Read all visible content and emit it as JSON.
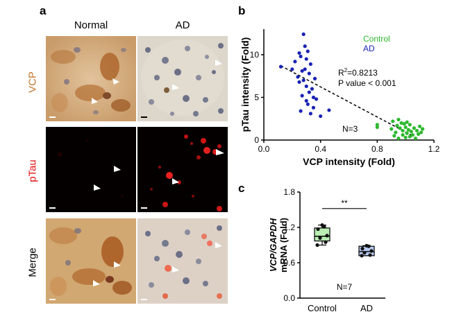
{
  "panel_a": {
    "letter": "a",
    "columns": [
      "Normal",
      "AD"
    ],
    "rows": [
      {
        "label": "VCP",
        "color": "#c8742a"
      },
      {
        "label": "pTau",
        "color": "#e01010"
      },
      {
        "label": "Merge",
        "color": "#000000"
      }
    ]
  },
  "panel_b": {
    "letter": "b",
    "legend": [
      {
        "name": "Control",
        "color": "#2db82d"
      },
      {
        "name": "AD",
        "color": "#1a22b4"
      }
    ],
    "stats_r2": "=0.8213",
    "stats_r2_prefix": "R",
    "stats_r2_sup": "2",
    "stats_p": "P value < 0.001",
    "n_label": "N=3",
    "xlabel": "VCP intensity (Fold)",
    "ylabel": "pTau intensity (Fold)",
    "xticks": [
      "0.0",
      "0.4",
      "0.8",
      "1.2"
    ],
    "yticks": [
      "0",
      "5",
      "10"
    ]
  },
  "panel_c": {
    "letter": "c",
    "ylabel_italic": "VCP/GAPDH",
    "ylabel": "mRNA (Fold)",
    "yticks": [
      "0.0",
      "0.6",
      "1.2",
      "1.8"
    ],
    "categories": [
      "Control",
      "AD"
    ],
    "significance": "**",
    "n_label": "N=7"
  },
  "chart_data": [
    {
      "type": "scatter",
      "title": "",
      "xlabel": "VCP intensity (Fold)",
      "ylabel": "pTau intensity (Fold)",
      "xlim": [
        0.0,
        1.2
      ],
      "ylim": [
        0,
        13
      ],
      "xticks": [
        0.0,
        0.4,
        0.8,
        1.2
      ],
      "yticks": [
        0,
        5,
        10
      ],
      "trendline": {
        "style": "dashed",
        "x": [
          0.12,
          1.05
        ],
        "y": [
          8.7,
          0.5
        ]
      },
      "series": [
        {
          "name": "Control",
          "color": "#2db82d",
          "points": [
            [
              0.8,
              1.5
            ],
            [
              0.8,
              1.8
            ],
            [
              0.9,
              1.3
            ],
            [
              0.91,
              2.2
            ],
            [
              0.93,
              0.9
            ],
            [
              0.94,
              1.7
            ],
            [
              0.95,
              0.2
            ],
            [
              0.96,
              1.4
            ],
            [
              0.97,
              2.0
            ],
            [
              0.98,
              0.6
            ],
            [
              0.98,
              1.1
            ],
            [
              0.99,
              1.9
            ],
            [
              1.0,
              0.3
            ],
            [
              1.0,
              1.5
            ],
            [
              1.01,
              0.8
            ],
            [
              1.02,
              1.2
            ],
            [
              1.03,
              0.4
            ],
            [
              1.03,
              1.8
            ],
            [
              1.04,
              1.0
            ],
            [
              1.05,
              0.6
            ],
            [
              1.06,
              1.4
            ],
            [
              1.07,
              0.2
            ],
            [
              1.08,
              1.1
            ],
            [
              1.09,
              0.7
            ],
            [
              1.1,
              1.6
            ],
            [
              1.11,
              0.9
            ],
            [
              1.12,
              1.3
            ],
            [
              0.92,
              0.5
            ],
            [
              0.95,
              2.4
            ],
            [
              1.01,
              2.1
            ]
          ]
        },
        {
          "name": "AD",
          "color": "#1a22b4",
          "points": [
            [
              0.12,
              8.6
            ],
            [
              0.2,
              8.3
            ],
            [
              0.22,
              9.2
            ],
            [
              0.24,
              7.4
            ],
            [
              0.25,
              10.2
            ],
            [
              0.25,
              6.8
            ],
            [
              0.26,
              9.8
            ],
            [
              0.27,
              8.1
            ],
            [
              0.27,
              5.2
            ],
            [
              0.28,
              12.4
            ],
            [
              0.28,
              7.0
            ],
            [
              0.29,
              11.0
            ],
            [
              0.3,
              6.3
            ],
            [
              0.3,
              9.5
            ],
            [
              0.31,
              10.4
            ],
            [
              0.31,
              4.2
            ],
            [
              0.32,
              7.8
            ],
            [
              0.32,
              5.6
            ],
            [
              0.33,
              3.1
            ],
            [
              0.33,
              8.9
            ],
            [
              0.34,
              6.0
            ],
            [
              0.35,
              5.0
            ],
            [
              0.35,
              3.8
            ],
            [
              0.36,
              7.2
            ],
            [
              0.3,
              4.6
            ],
            [
              0.26,
              3.4
            ],
            [
              0.37,
              4.8
            ],
            [
              0.4,
              2.8
            ],
            [
              0.46,
              3.5
            ],
            [
              0.29,
              8.3
            ]
          ]
        }
      ]
    },
    {
      "type": "box",
      "title": "",
      "xlabel": "",
      "ylabel": "VCP/GAPDH mRNA (Fold)",
      "ylim": [
        0.0,
        1.8
      ],
      "yticks": [
        0.0,
        0.6,
        1.2,
        1.8
      ],
      "categories": [
        "Control",
        "AD"
      ],
      "series": [
        {
          "name": "Control",
          "color": "#b9efb3",
          "box": {
            "q1": 0.97,
            "median": 1.05,
            "q3": 1.19,
            "min": 0.9,
            "max": 1.24
          },
          "points": [
            0.9,
            0.95,
            1.02,
            1.06,
            1.17,
            1.21,
            1.24
          ]
        },
        {
          "name": "AD",
          "color": "#b7c9ee",
          "box": {
            "q1": 0.72,
            "median": 0.79,
            "q3": 0.88,
            "min": 0.72,
            "max": 0.89
          },
          "points": [
            0.72,
            0.73,
            0.77,
            0.8,
            0.84,
            0.88,
            0.89
          ]
        }
      ]
    }
  ]
}
